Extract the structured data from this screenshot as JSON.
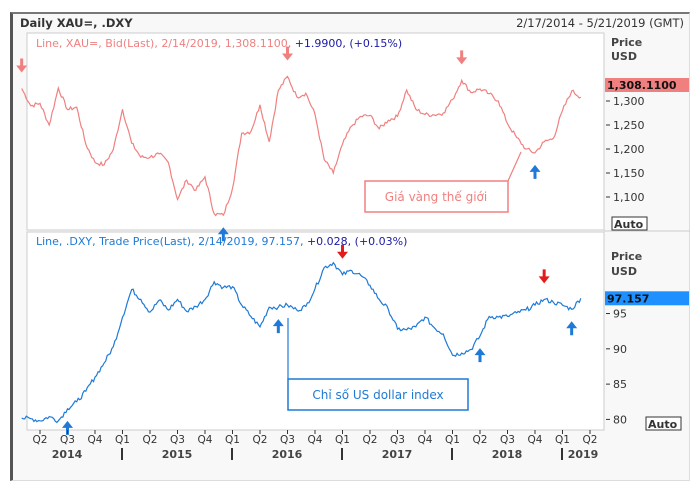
{
  "header": {
    "title": "Daily XAU=, .DXY",
    "date_range": "2/17/2014 - 5/21/2019 (GMT)"
  },
  "chart_data": [
    {
      "type": "line",
      "legend": {
        "prefix": "Line, XAU=, Bid(Last), 2/14/2019, 1,308.1100,",
        "change": "+1.9900, (+0.15%)"
      },
      "axis_title": [
        "Price",
        "USD"
      ],
      "last_value_label": "1,308.1100",
      "last_value": 1308.11,
      "color": "#f08080",
      "yticks": [
        1100,
        1150,
        1200,
        1250,
        1300
      ],
      "ytick_labels": [
        "1,100",
        "1,150",
        "1,200",
        "1,250",
        "1,300"
      ],
      "ylim": [
        1050,
        1400
      ],
      "auto_label": "Auto",
      "annotation": "Giá vàng thế giới",
      "x_start": "2014-02",
      "x_step": "month",
      "values": [
        1326,
        1290,
        1295,
        1250,
        1327,
        1282,
        1287,
        1210,
        1172,
        1167,
        1199,
        1283,
        1212,
        1183,
        1183,
        1190,
        1172,
        1095,
        1135,
        1114,
        1142,
        1065,
        1062,
        1118,
        1233,
        1236,
        1292,
        1215,
        1322,
        1351,
        1309,
        1316,
        1272,
        1178,
        1150,
        1210,
        1248,
        1268,
        1270,
        1242,
        1260,
        1268,
        1323,
        1283,
        1272,
        1271,
        1275,
        1303,
        1343,
        1318,
        1325,
        1315,
        1300,
        1253,
        1224,
        1200,
        1192,
        1215,
        1222,
        1280,
        1321,
        1308
      ],
      "markers_down_idx": [
        0,
        29,
        48
      ],
      "markers_up_idx": [
        22,
        56
      ]
    },
    {
      "type": "line",
      "legend": {
        "prefix": "Line, .DXY, Trade Price(Last), 2/14/2019, 97.157,",
        "change": "+0.028, (+0.03%)"
      },
      "axis_title": [
        "Price",
        "USD"
      ],
      "last_value_label": "97.157",
      "last_value": 97.157,
      "color": "#1e7ad6",
      "yticks": [
        80,
        85,
        90,
        95
      ],
      "ytick_labels": [
        "80",
        "85",
        "90",
        "95"
      ],
      "ylim": [
        78.5,
        104
      ],
      "auto_label": "Auto",
      "annotation": "Chỉ số US dollar index",
      "x_start": "2014-02",
      "x_step": "month",
      "values": [
        80.2,
        80.1,
        79.8,
        80.4,
        79.8,
        81.5,
        82.5,
        84,
        86,
        88,
        90.3,
        94.5,
        98.4,
        97,
        95.2,
        96.9,
        95.5,
        97,
        95.3,
        96,
        97,
        99.5,
        98.7,
        98.8,
        96.2,
        94.6,
        93.1,
        95.9,
        95.9,
        96.2,
        95.5,
        96,
        98.5,
        101.5,
        102.2,
        100.5,
        101.1,
        100.4,
        99,
        97,
        95.6,
        92.8,
        92.7,
        93.1,
        94.5,
        93,
        92.1,
        89.1,
        89.4,
        89.9,
        91.8,
        94.6,
        94.5,
        94.6,
        95.1,
        95.5,
        96.2,
        97,
        96.6,
        96.2,
        95.6,
        97.157
      ],
      "markers_down_idx": [
        35,
        57
      ],
      "markers_up_idx": [
        5,
        28,
        50,
        60
      ]
    }
  ],
  "xaxis": {
    "quarters": [
      "Q2",
      "Q3",
      "Q4",
      "Q1",
      "Q2",
      "Q3",
      "Q4",
      "Q1",
      "Q2",
      "Q3",
      "Q4",
      "Q1",
      "Q2",
      "Q3",
      "Q4",
      "Q1",
      "Q2",
      "Q3",
      "Q4",
      "Q1",
      "Q2"
    ],
    "years": [
      "2014",
      "2015",
      "2016",
      "2017",
      "2018",
      "2019"
    ]
  }
}
